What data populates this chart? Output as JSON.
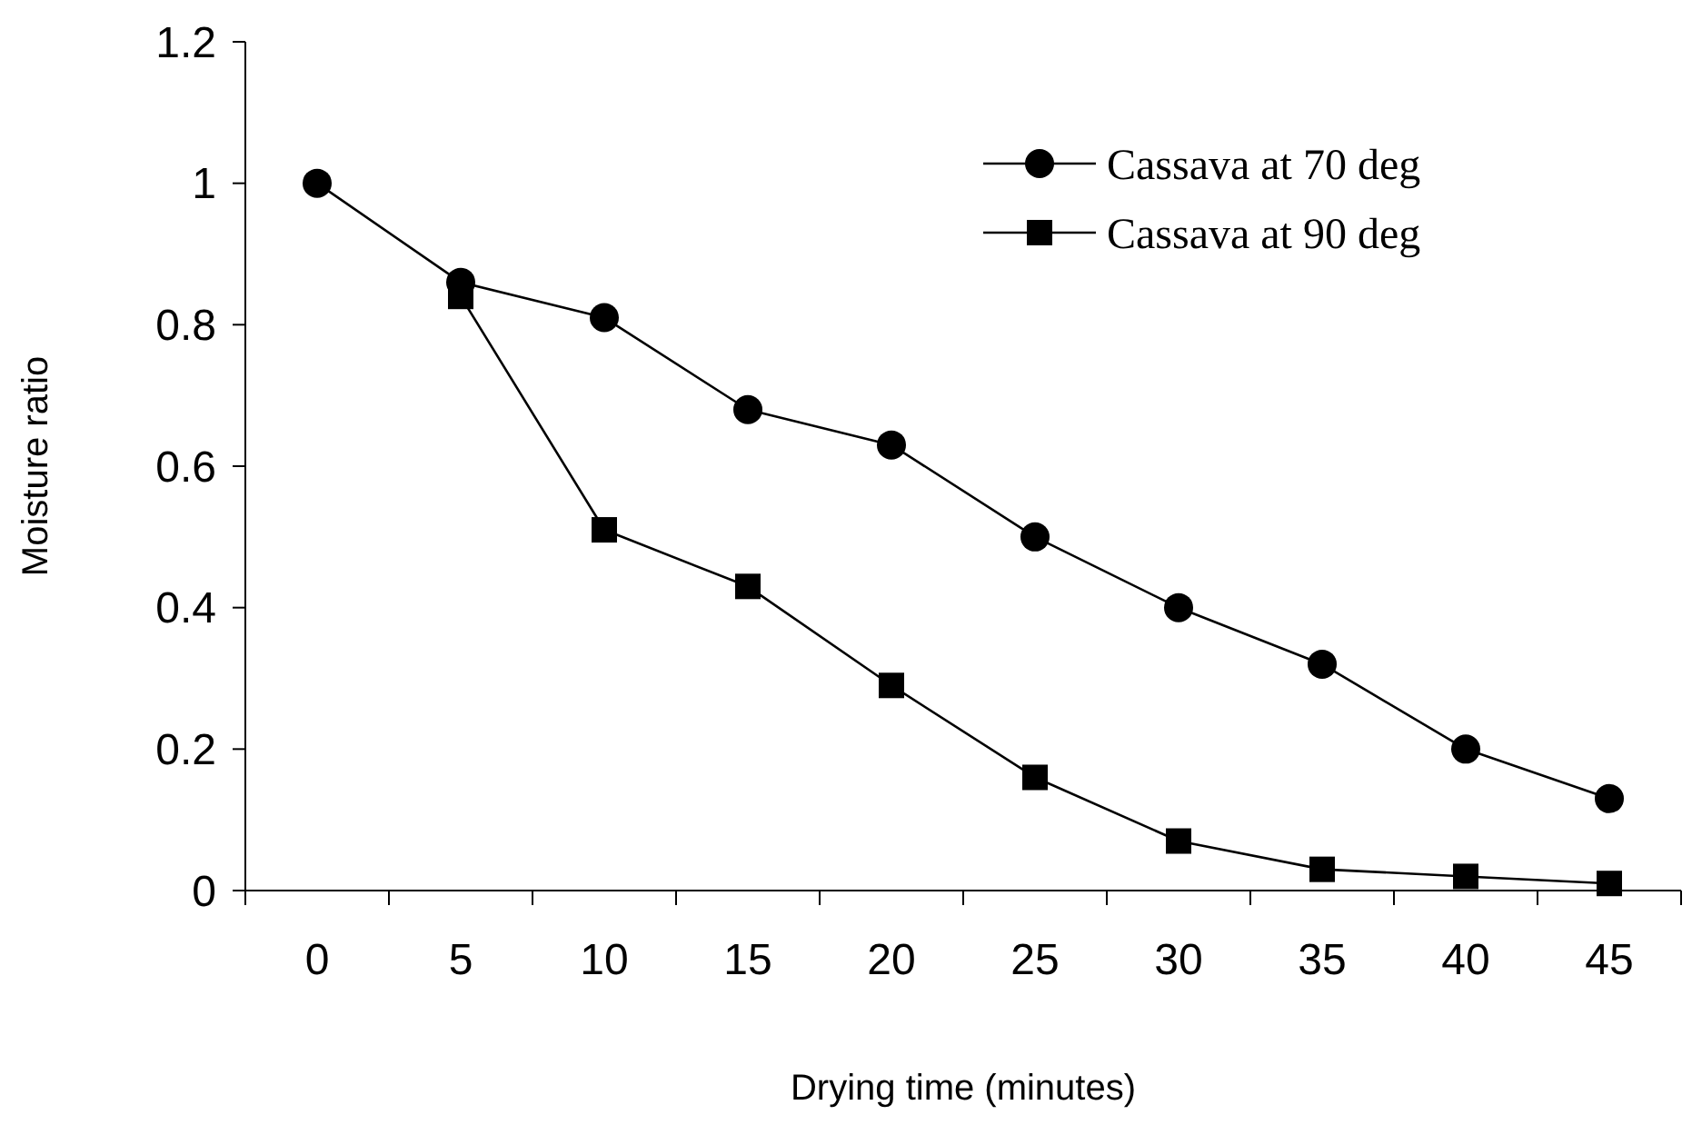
{
  "chart_data": {
    "type": "line",
    "xlabel": "Drying time (minutes)",
    "ylabel": "Moisture ratio",
    "categories": [
      "0",
      "5",
      "10",
      "15",
      "20",
      "25",
      "30",
      "35",
      "40",
      "45"
    ],
    "ylim": [
      0,
      1.2
    ],
    "yticks": [
      0,
      0.2,
      0.4,
      0.6,
      0.8,
      1,
      1.2
    ],
    "grid": false,
    "legend": "top right",
    "line_style": "solid",
    "series": [
      {
        "name": "Cassava at 70 deg",
        "color": "#000000",
        "marker": "circle",
        "values": [
          1.0,
          0.86,
          0.81,
          0.68,
          0.63,
          0.5,
          0.4,
          0.32,
          0.2,
          0.13
        ]
      },
      {
        "name": "Cassava at 90 deg",
        "color": "#000000",
        "marker": "square",
        "values": [
          null,
          0.84,
          0.51,
          0.43,
          0.29,
          0.16,
          0.07,
          0.03,
          0.02,
          0.01
        ]
      }
    ]
  }
}
